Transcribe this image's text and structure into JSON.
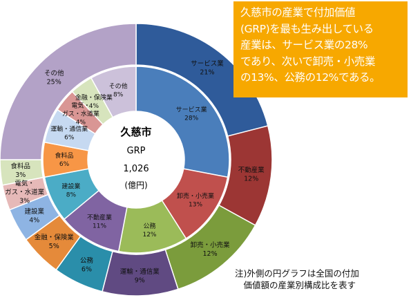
{
  "callout": {
    "text": "久慈市の産業で付加価値\n(GRP)を最も生み出している\n産業は、サービス業の28%\nであり、次いで卸売・小売業\nの13%、公務の12%である。"
  },
  "footnote": "注)外側の円グラフは全国の付加\n　価値額の産業別構成比を表す",
  "colors": {
    "callout_bg": "#f7a800",
    "サービス業": "#4a7ebb",
    "不動産業": "#be4b48",
    "卸売・小売業": "#98b954",
    "運輸・通信業": "#7d60a0",
    "公務": "#46aac5",
    "金融・保険業": "#f79646",
    "建設業": "#4bacc6",
    "電気・ガス・水道業": "#d99694",
    "食料品": "#c3d69b",
    "その他": "#b3a2c7"
  },
  "chart_data": {
    "type": "pie",
    "center_label": {
      "title": "久慈市",
      "line1": "GRP",
      "line2": "1,026",
      "line3": "(億円)"
    },
    "rings": [
      {
        "ring": "outer",
        "slices": [
          {
            "label": "サービス業",
            "value": 21,
            "value_text": "21%",
            "color": "#2f5b9a"
          },
          {
            "label": "不動産業",
            "value": 12,
            "value_text": "12%",
            "color": "#9c3634"
          },
          {
            "label": "卸売・小売業",
            "value": 12,
            "value_text": "12%",
            "color": "#7b9c3c"
          },
          {
            "label": "運輸・通信業",
            "value": 9,
            "value_text": "9%",
            "color": "#604a82"
          },
          {
            "label": "公務",
            "value": 6,
            "value_text": "6%",
            "color": "#2a8eaa"
          },
          {
            "label": "金融・保険業",
            "value": 5,
            "value_text": "5%",
            "color": "#e58a3a"
          },
          {
            "label": "建設業",
            "value": 4,
            "value_text": "4%",
            "color": "#8eb4e3"
          },
          {
            "label": "電気・ガス・水道業",
            "value": 3,
            "value_text": "3%",
            "color": "#e6b9b8"
          },
          {
            "label": "食料品",
            "value": 3,
            "value_text": "3%",
            "color": "#d7e4bd"
          },
          {
            "label": "その他",
            "value": 25,
            "value_text": "25%",
            "color": "#b3a2c7"
          }
        ]
      },
      {
        "ring": "inner",
        "slices": [
          {
            "label": "サービス業",
            "value": 28,
            "value_text": "28%",
            "color": "#4a7ebb"
          },
          {
            "label": "不動産業",
            "value": 0,
            "value_text": "",
            "color": "#c0504d"
          },
          {
            "label": "卸売・小売業",
            "value": 13,
            "value_text": "13%",
            "color": "#c0504d"
          },
          {
            "label": "公務",
            "value": 12,
            "value_text": "12%",
            "color": "#9bbb59"
          },
          {
            "label": "不動産業",
            "value": 11,
            "value_text": "11%",
            "color": "#8064a2"
          },
          {
            "label": "建設業",
            "value": 8,
            "value_text": "8%",
            "color": "#4bacc6"
          },
          {
            "label": "食料品",
            "value": 6,
            "value_text": "6%",
            "color": "#f79646"
          },
          {
            "label": "運輸・通信業",
            "value": 6,
            "value_text": "6%",
            "color": "#c6d9f1"
          },
          {
            "label": "電気・ガス・水道業",
            "value": 4,
            "value_text": "4%",
            "color": "#d99694"
          },
          {
            "label": "金融・保険業",
            "value": 4,
            "value_text": "4%",
            "color": "#d7e4bd"
          },
          {
            "label": "その他",
            "value": 8,
            "value_text": "8%",
            "color": "#ccc1da"
          }
        ]
      }
    ]
  }
}
